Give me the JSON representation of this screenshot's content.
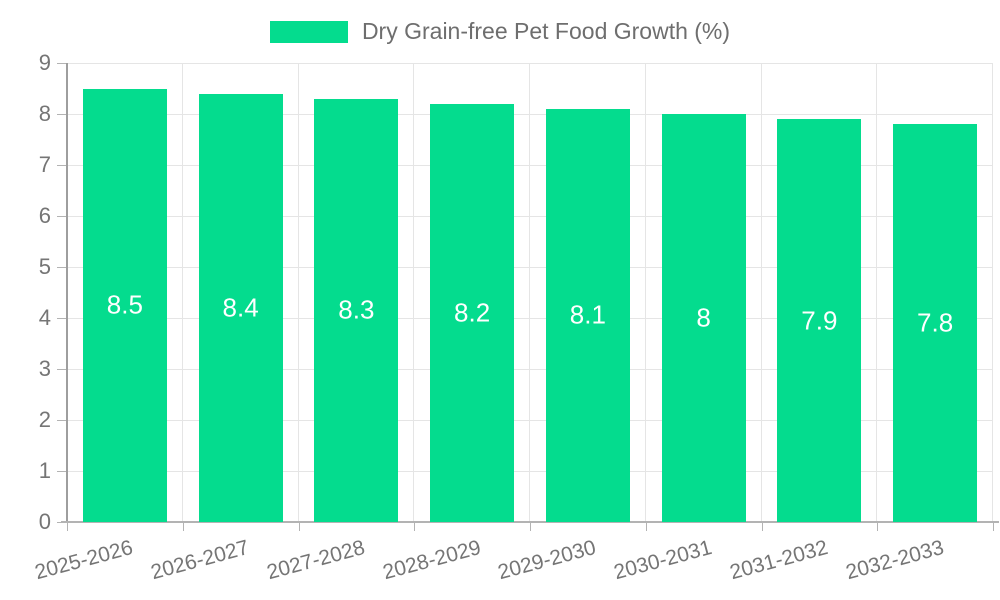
{
  "chart_data": {
    "type": "bar",
    "title": "Dry Grain-free Pet Food Growth (%)",
    "categories": [
      "2025-2026",
      "2026-2027",
      "2027-2028",
      "2028-2029",
      "2029-2030",
      "2030-2031",
      "2031-2032",
      "2032-2033"
    ],
    "values": [
      8.5,
      8.4,
      8.3,
      8.2,
      8.1,
      8,
      7.9,
      7.8
    ],
    "data_labels": [
      "8.5",
      "8.4",
      "8.3",
      "8.2",
      "8.1",
      "8",
      "7.9",
      "7.8"
    ],
    "xlabel": "",
    "ylabel": "",
    "ylim": [
      0,
      9
    ],
    "yticks": [
      0,
      1,
      2,
      3,
      4,
      5,
      6,
      7,
      8,
      9
    ],
    "grid": true,
    "legend_position": "top-center",
    "colors": {
      "bar": "#04DC8E",
      "data_label": "#ffffff",
      "grid": "#e5e5e5",
      "axis_line": "#9e9e9e",
      "baseline": "#b3b3b3",
      "axis_text": "#757575",
      "legend_text": "#6e6e6e",
      "background": "#ffffff"
    }
  }
}
